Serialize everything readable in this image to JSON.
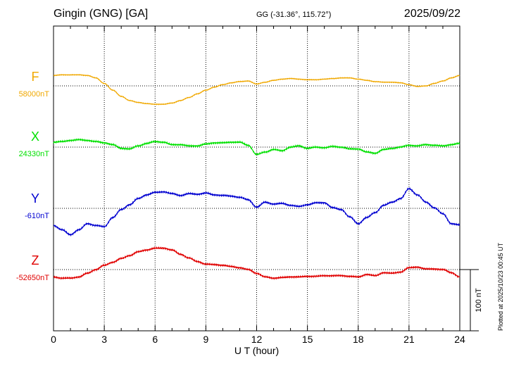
{
  "header": {
    "title": "Gingin (GNG)  [GA]",
    "coords": "GG (-31.36°, 115.72°)",
    "date": "2025/09/22"
  },
  "plotted_note": "Plotted at 2025/10/23 00:45 UT",
  "colors": {
    "F": "#f0a800",
    "X": "#00e000",
    "Y": "#0000d0",
    "Z": "#e00000"
  },
  "chart_data": {
    "type": "line",
    "xlabel": "U T (hour)",
    "xlim": [
      0,
      24
    ],
    "xticks": [
      0,
      3,
      6,
      9,
      12,
      15,
      18,
      21,
      24
    ],
    "scale_bar": "100 nT",
    "series": [
      {
        "name": "F",
        "baseline_label": "58000nT",
        "x": [
          0,
          0.5,
          1,
          1.5,
          2,
          2.5,
          3,
          3.5,
          4,
          4.5,
          5,
          5.5,
          6,
          6.5,
          7,
          7.5,
          8,
          8.5,
          9,
          9.5,
          10,
          10.5,
          11,
          11.5,
          12,
          12.5,
          13,
          13.5,
          14,
          14.5,
          15,
          15.5,
          16,
          16.5,
          17,
          17.5,
          18,
          18.5,
          19,
          19.5,
          20,
          20.5,
          21,
          21.5,
          22,
          22.5,
          23,
          23.5,
          24
        ],
        "y": [
          58017,
          58018,
          58018,
          58018,
          58017,
          58013,
          58004,
          57993,
          57983,
          57976,
          57973,
          57971,
          57970,
          57970,
          57972,
          57976,
          57981,
          57987,
          57993,
          57998,
          58002,
          58005,
          58007,
          58008,
          58003,
          58006,
          58009,
          58011,
          58012,
          58011,
          58010,
          58010,
          58011,
          58012,
          58013,
          58013,
          58011,
          58009,
          58007,
          58006,
          58006,
          58005,
          58002,
          57999,
          58000,
          58004,
          58008,
          58013,
          58017
        ]
      },
      {
        "name": "X",
        "baseline_label": "24330nT",
        "x": [
          0,
          0.5,
          1,
          1.5,
          2,
          2.5,
          3,
          3.5,
          4,
          4.5,
          5,
          5.5,
          6,
          6.5,
          7,
          7.5,
          8,
          8.5,
          9,
          9.5,
          10,
          10.5,
          11,
          11.5,
          12,
          12.5,
          13,
          13.5,
          14,
          14.5,
          15,
          15.5,
          16,
          16.5,
          17,
          17.5,
          18,
          18.5,
          19,
          19.5,
          20,
          20.5,
          21,
          21.5,
          22,
          22.5,
          23,
          23.5,
          24
        ],
        "y": [
          24338,
          24339,
          24341,
          24342,
          24341,
          24339,
          24337,
          24334,
          24328,
          24327,
          24332,
          24336,
          24339,
          24338,
          24334,
          24334,
          24332,
          24332,
          24335,
          24337,
          24337,
          24338,
          24338,
          24333,
          24318,
          24322,
          24326,
          24324,
          24330,
          24332,
          24328,
          24330,
          24329,
          24331,
          24330,
          24327,
          24327,
          24322,
          24320,
          24326,
          24328,
          24330,
          24333,
          24332,
          24334,
          24333,
          24332,
          24334,
          24336
        ]
      },
      {
        "name": "Y",
        "baseline_label": "-610nT",
        "x": [
          0,
          0.5,
          1,
          1.5,
          2,
          2.5,
          3,
          3.5,
          4,
          4.5,
          5,
          5.5,
          6,
          6.5,
          7,
          7.5,
          8,
          8.5,
          9,
          9.5,
          10,
          10.5,
          11,
          11.5,
          12,
          12.5,
          13,
          13.5,
          14,
          14.5,
          15,
          15.5,
          16,
          16.5,
          17,
          17.5,
          18,
          18.5,
          19,
          19.5,
          20,
          20.5,
          21,
          21.5,
          22,
          22.5,
          23,
          23.5,
          24
        ],
        "y": [
          -638,
          -645,
          -653,
          -645,
          -635,
          -638,
          -640,
          -625,
          -612,
          -604,
          -594,
          -588,
          -584,
          -583,
          -586,
          -589,
          -586,
          -587,
          -585,
          -588,
          -589,
          -590,
          -592,
          -596,
          -608,
          -600,
          -603,
          -602,
          -605,
          -607,
          -604,
          -601,
          -601,
          -609,
          -612,
          -624,
          -635,
          -625,
          -617,
          -605,
          -600,
          -594,
          -578,
          -588,
          -600,
          -609,
          -619,
          -635,
          -637
        ]
      },
      {
        "name": "Z",
        "baseline_label": "-52650nT",
        "x": [
          0,
          0.5,
          1,
          1.5,
          2,
          2.5,
          3,
          3.5,
          4,
          4.5,
          5,
          5.5,
          6,
          6.5,
          7,
          7.5,
          8,
          8.5,
          9,
          9.5,
          10,
          10.5,
          11,
          11.5,
          12,
          12.5,
          13,
          13.5,
          14,
          14.5,
          15,
          15.5,
          16,
          16.5,
          17,
          17.5,
          18,
          18.5,
          19,
          19.5,
          20,
          20.5,
          21,
          21.5,
          22,
          22.5,
          23,
          23.5,
          24
        ],
        "y": [
          -52662,
          -52664,
          -52664,
          -52662,
          -52656,
          -52650,
          -52643,
          -52638,
          -52632,
          -52627,
          -52621,
          -52618,
          -52615,
          -52615,
          -52618,
          -52625,
          -52631,
          -52637,
          -52641,
          -52642,
          -52643,
          -52645,
          -52647,
          -52650,
          -52656,
          -52662,
          -52664,
          -52663,
          -52662,
          -52662,
          -52661,
          -52661,
          -52660,
          -52660,
          -52660,
          -52661,
          -52662,
          -52658,
          -52660,
          -52655,
          -52656,
          -52654,
          -52647,
          -52646,
          -52649,
          -52649,
          -52650,
          -52655,
          -52662
        ]
      }
    ]
  }
}
